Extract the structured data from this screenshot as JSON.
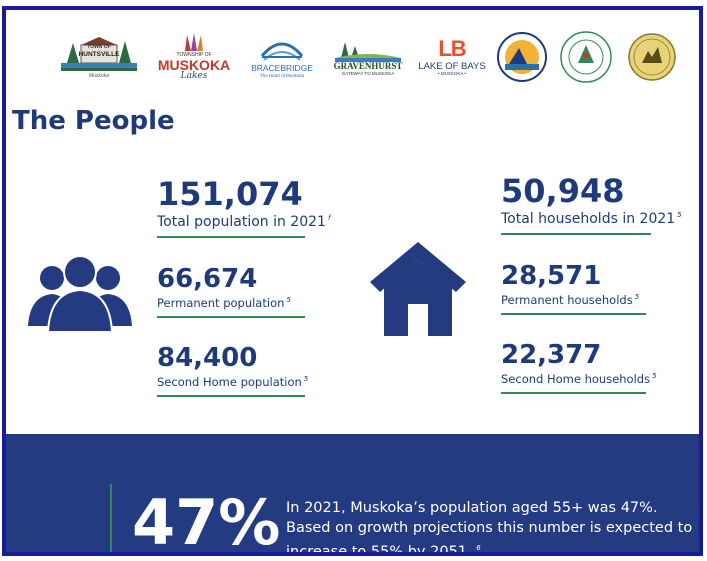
{
  "logos": [
    {
      "name": "Huntsville",
      "top": "TOWN OF",
      "title": "HUNTSVILLE",
      "sub": "Muskoka"
    },
    {
      "name": "Muskoka Lakes",
      "top": "TOWNSHIP OF",
      "title": "MUSKOKA",
      "sub": "Lakes"
    },
    {
      "name": "Bracebridge",
      "title": "BRACEBRIDGE",
      "sub": "The Heart of Muskoka"
    },
    {
      "name": "Gravenhurst",
      "title": "GRAVENHURST",
      "sub": "GATEWAY TO MUSKOKA"
    },
    {
      "name": "Lake of Bays",
      "mark": "LB",
      "title": "LAKE OF BAYS",
      "sub": "• MUSKOKA •"
    },
    {
      "name": "Georgian Bay",
      "title": "",
      "sub": ""
    },
    {
      "name": "Wahta Mohawks",
      "title": "WAHTA",
      "sub": ""
    },
    {
      "name": "Moose Deer Point",
      "title": "",
      "sub": ""
    }
  ],
  "section_title": "The People",
  "population": {
    "total": {
      "value": "151,074",
      "label": "Total population in 2021",
      "note": "f"
    },
    "permanent": {
      "value": "66,674",
      "label": "Permanent population",
      "note": "5"
    },
    "second_home": {
      "value": "84,400",
      "label": "Second Home population",
      "note": "5"
    }
  },
  "households": {
    "total": {
      "value": "50,948",
      "label": "Total households in 2021",
      "note": "5"
    },
    "permanent": {
      "value": "28,571",
      "label": "Permanent households",
      "note": "5"
    },
    "second_home": {
      "value": "22,377",
      "label": "Second Home households",
      "note": "5"
    }
  },
  "banner": {
    "percent": "47%",
    "line1": "In 2021, Muskoka’s population aged 55+ was 47%.",
    "line2": "Based on growth projections this number is expected to",
    "line3": "increase to 55% by 2051.",
    "note": "6"
  },
  "colors": {
    "navy": "#1f3a7a",
    "banner": "#243b82",
    "accent_green": "#2e8b57",
    "frame": "#1a1a9c"
  },
  "icons": [
    "people-group-icon",
    "house-icon"
  ]
}
